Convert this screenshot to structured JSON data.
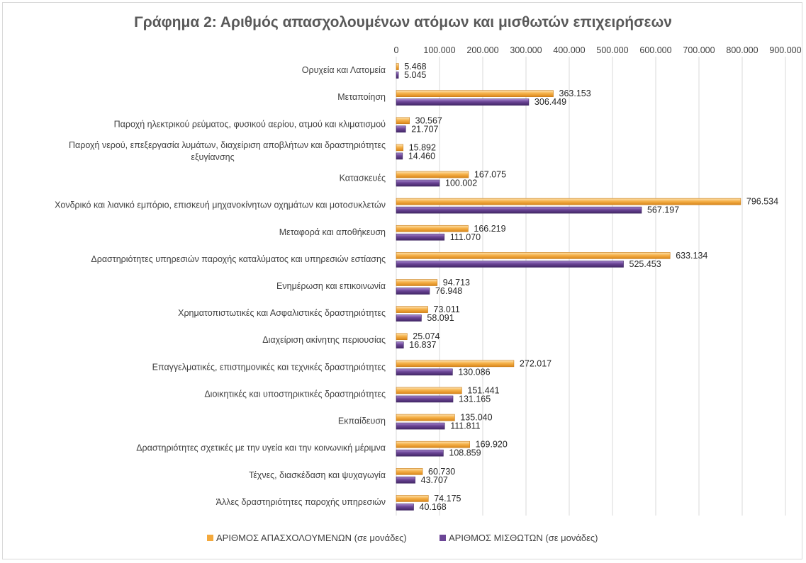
{
  "chart_data": {
    "type": "bar",
    "orientation": "horizontal",
    "title": "Γράφημα 2: Αριθμός απασχολουμένων ατόμων και μισθωτών επιχειρήσεων",
    "categories": [
      "Ορυχεία και Λατομεία",
      "Μεταποίηση",
      "Παροχή ηλεκτρικού ρεύματος, φυσικού αερίου, ατμού και κλιματισμού",
      "Παροχή νερού, επεξεργασία λυμάτων, διαχείριση αποβλήτων και δραστηριότητες εξυγίανσης",
      "Κατασκευές",
      "Χονδρικό και λιανικό εμπόριο, επισκευή μηχανοκίνητων οχημάτων και μοτοσυκλετών",
      "Μεταφορά και αποθήκευση",
      "Δραστηριότητες υπηρεσιών παροχής καταλύματος και υπηρεσιών εστίασης",
      "Ενημέρωση και επικοινωνία",
      "Χρηματοπιστωτικές και Ασφαλιστικές δραστηριότητες",
      "Διαχείριση ακίνητης περιουσίας",
      "Επαγγελματικές, επιστημονικές και τεχνικές δραστηριότητες",
      "Διοικητικές και υποστηρικτικές δραστηριότητες",
      "Εκπαίδευση",
      "Δραστηριότητες σχετικές με την υγεία και την κοινωνική μέριμνα",
      "Τέχνες, διασκέδαση και ψυχαγωγία",
      "Άλλες δραστηριότητες παροχής υπηρεσιών"
    ],
    "category_lines": [
      [
        "Ορυχεία και Λατομεία"
      ],
      [
        "Μεταποίηση"
      ],
      [
        "Παροχή ηλεκτρικού ρεύματος, φυσικού αερίου, ατμού και κλιματισμού"
      ],
      [
        "Παροχή νερού, επεξεργασία λυμάτων, διαχείριση αποβλήτων και δραστηριότητες",
        "εξυγίανσης"
      ],
      [
        "Κατασκευές"
      ],
      [
        "Χονδρικό και λιανικό εμπόριο, επισκευή μηχανοκίνητων οχημάτων και μοτοσυκλετών"
      ],
      [
        "Μεταφορά και αποθήκευση"
      ],
      [
        "Δραστηριότητες υπηρεσιών παροχής καταλύματος και υπηρεσιών εστίασης"
      ],
      [
        "Ενημέρωση και επικοινωνία"
      ],
      [
        "Χρηματοπιστωτικές και Ασφαλιστικές δραστηριότητες"
      ],
      [
        "Διαχείριση ακίνητης περιουσίας"
      ],
      [
        "Επαγγελματικές, επιστημονικές και τεχνικές δραστηριότητες"
      ],
      [
        "Διοικητικές και υποστηρικτικές δραστηριότητες"
      ],
      [
        "Εκπαίδευση"
      ],
      [
        "Δραστηριότητες σχετικές με την υγεία και την κοινωνική μέριμνα"
      ],
      [
        "Τέχνες, διασκέδαση και ψυχαγωγία"
      ],
      [
        "Άλλες δραστηριότητες παροχής υπηρεσιών"
      ]
    ],
    "series": [
      {
        "name": "ΑΡΙΘΜΟΣ ΑΠΑΣΧΟΛΟΥΜΕΝΩΝ (σε μονάδες)",
        "color": "#f4a93c",
        "values": [
          5468,
          363153,
          30567,
          15892,
          167075,
          796534,
          166219,
          633134,
          94713,
          73011,
          25074,
          272017,
          151441,
          135040,
          169920,
          60730,
          74175
        ],
        "labels": [
          "5.468",
          "363.153",
          "30.567",
          "15.892",
          "167.075",
          "796.534",
          "166.219",
          "633.134",
          "94.713",
          "73.011",
          "25.074",
          "272.017",
          "151.441",
          "135.040",
          "169.920",
          "60.730",
          "74.175"
        ]
      },
      {
        "name": "ΑΡΙΘΜΟΣ ΜΙΣΘΩΤΩΝ (σε μονάδες)",
        "color": "#6b4596",
        "values": [
          5045,
          306449,
          21707,
          14460,
          100002,
          567197,
          111070,
          525453,
          76948,
          58091,
          16837,
          130086,
          131165,
          111811,
          108859,
          43707,
          40168
        ],
        "labels": [
          "5.045",
          "306.449",
          "21.707",
          "14.460",
          "100.002",
          "567.197",
          "111.070",
          "525.453",
          "76.948",
          "58.091",
          "16.837",
          "130.086",
          "131.165",
          "111.811",
          "108.859",
          "43.707",
          "40.168"
        ]
      }
    ],
    "xlim": [
      0,
      900000
    ],
    "x_ticks": [
      0,
      100000,
      200000,
      300000,
      400000,
      500000,
      600000,
      700000,
      800000,
      900000
    ],
    "x_tick_labels": [
      "0",
      "100.000",
      "200.000",
      "300.000",
      "400.000",
      "500.000",
      "600.000",
      "700.000",
      "800.000",
      "900.000"
    ],
    "x_axis_position": "top",
    "grid": true,
    "legend_position": "bottom"
  }
}
